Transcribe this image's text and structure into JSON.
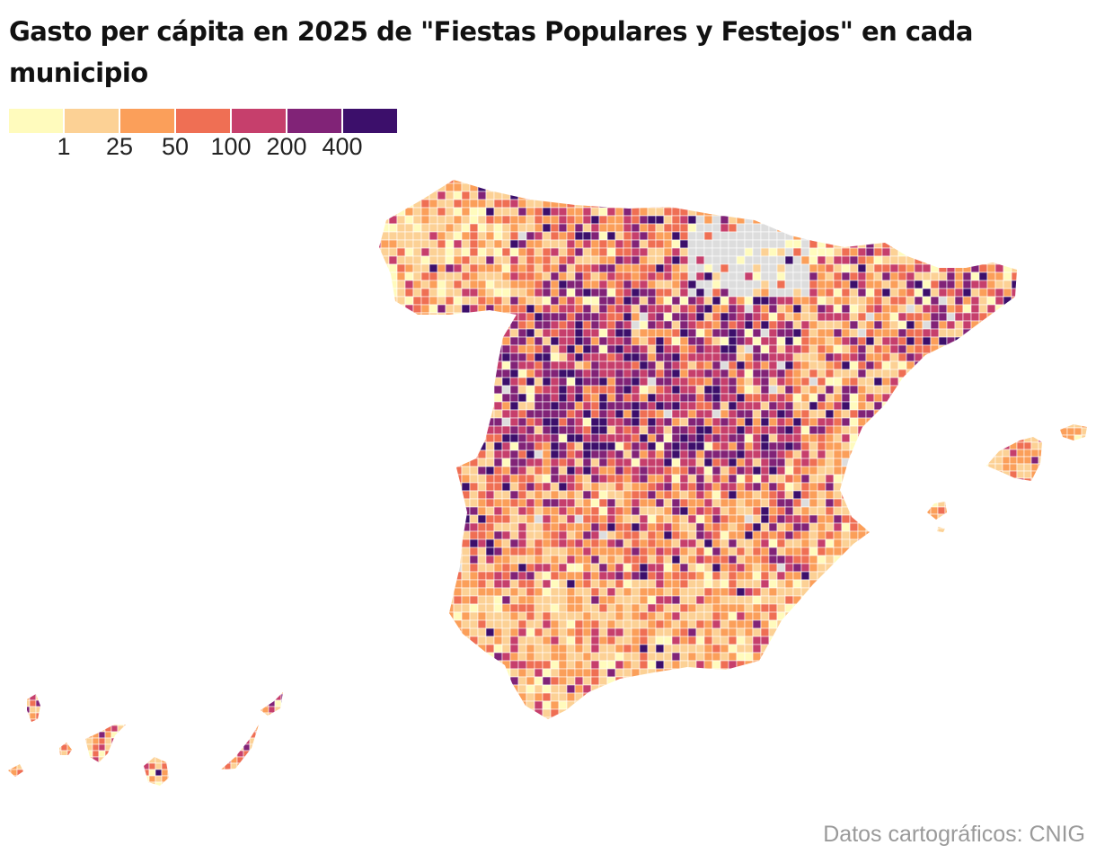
{
  "title": "Gasto per cápita en 2025 de \"Fiestas Populares y Festejos\" en cada municipio",
  "legend": {
    "colors": [
      "#fffbbd",
      "#fcd195",
      "#fb9f5a",
      "#ef6f54",
      "#c63f6c",
      "#812377",
      "#3c0f6b"
    ],
    "thresholds": [
      "1",
      "25",
      "50",
      "100",
      "200",
      "400"
    ],
    "no_data_color": "#dddddd"
  },
  "map": {
    "regions": [
      "Península",
      "Islas Baleares",
      "Islas Canarias"
    ]
  },
  "source": "Datos cartográficos: CNIG"
}
